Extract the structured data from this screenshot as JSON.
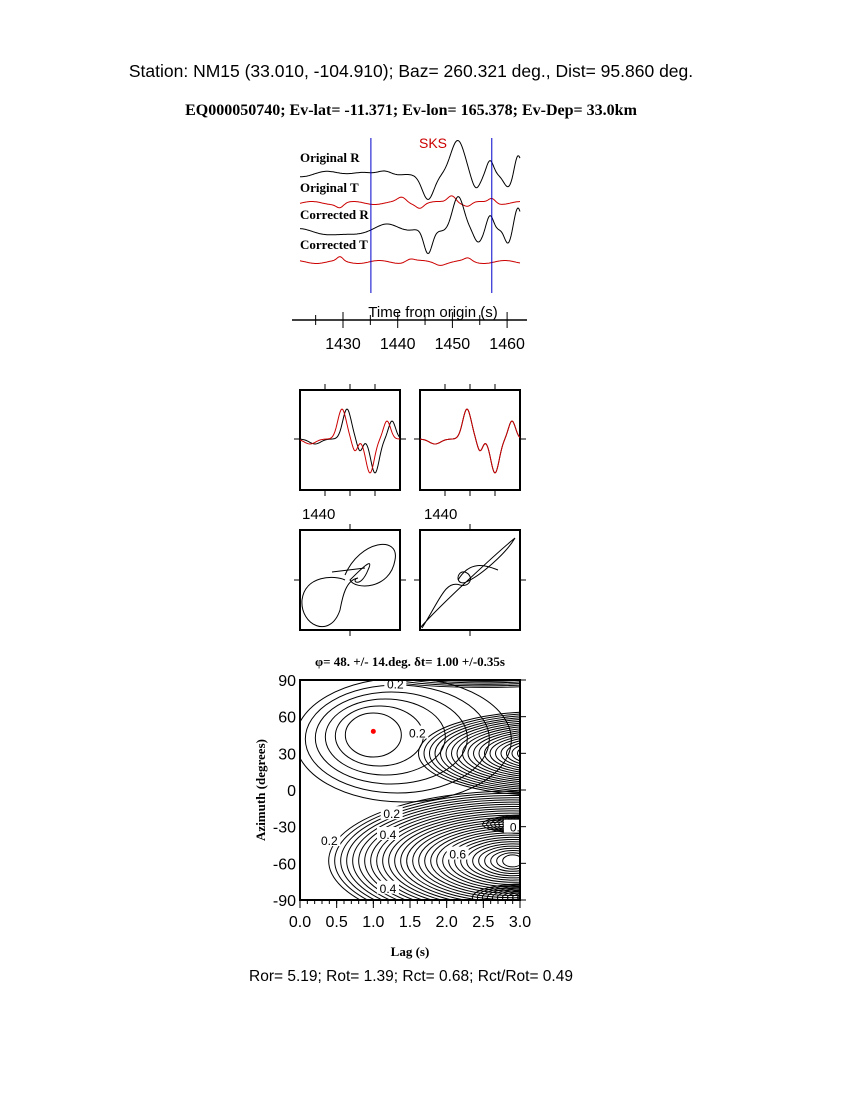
{
  "header": {
    "station_line": "Station: NM15 (33.010, -104.910); Baz=  260.321 deg., Dist=   95.860 deg.",
    "event_line": "EQ000050740; Ev-lat= -11.371; Ev-lon= 165.378; Ev-Dep= 33.0km"
  },
  "traces": {
    "phase_label": "SKS",
    "labels": [
      "Original R",
      "Original T",
      "Corrected R",
      "Corrected T"
    ],
    "window_times": [
      1435.1,
      1457.2
    ],
    "xlabel": "Time from origin (s)",
    "xticks": [
      "1430",
      "1440",
      "1450",
      "1460"
    ],
    "xrange": [
      1422,
      1462
    ],
    "colors": {
      "radial": "#000000",
      "transverse": "#cc0000",
      "window": "#0000cc"
    }
  },
  "waveform_panels": {
    "tick_label_left": "1440",
    "tick_label_right": "1440"
  },
  "chart_data": {
    "type": "contour",
    "title": "φ= 48. +/- 14.deg. δt= 1.00 +/-0.35s",
    "xlabel": "Lag (s)",
    "ylabel": "Azimuth (degrees)",
    "xlim": [
      0.0,
      3.0
    ],
    "ylim": [
      -90,
      90
    ],
    "xticks": [
      "0.0",
      "0.5",
      "1.0",
      "1.5",
      "2.0",
      "2.5",
      "3.0"
    ],
    "yticks": [
      "90",
      "60",
      "30",
      "0",
      "-30",
      "-60",
      "-90"
    ],
    "contour_labels": [
      {
        "text": "0.2",
        "x": 1.3,
        "y": 87
      },
      {
        "text": "0.2",
        "x": 1.6,
        "y": 47
      },
      {
        "text": "0.2",
        "x": 1.25,
        "y": -19
      },
      {
        "text": "0.2",
        "x": 0.4,
        "y": -41
      },
      {
        "text": "0.4",
        "x": 1.2,
        "y": -36
      },
      {
        "text": "0.6",
        "x": 2.15,
        "y": -52
      },
      {
        "text": "0.4",
        "x": 1.2,
        "y": -80
      },
      {
        "text": "0.",
        "x": 2.93,
        "y": -30
      }
    ],
    "best_fit": {
      "lag": 1.0,
      "azimuth": 48,
      "color": "#ff0000"
    }
  },
  "footer": {
    "ratios": "Ror= 5.19; Rot= 1.39; Rct= 0.68; Rct/Rot= 0.49"
  }
}
